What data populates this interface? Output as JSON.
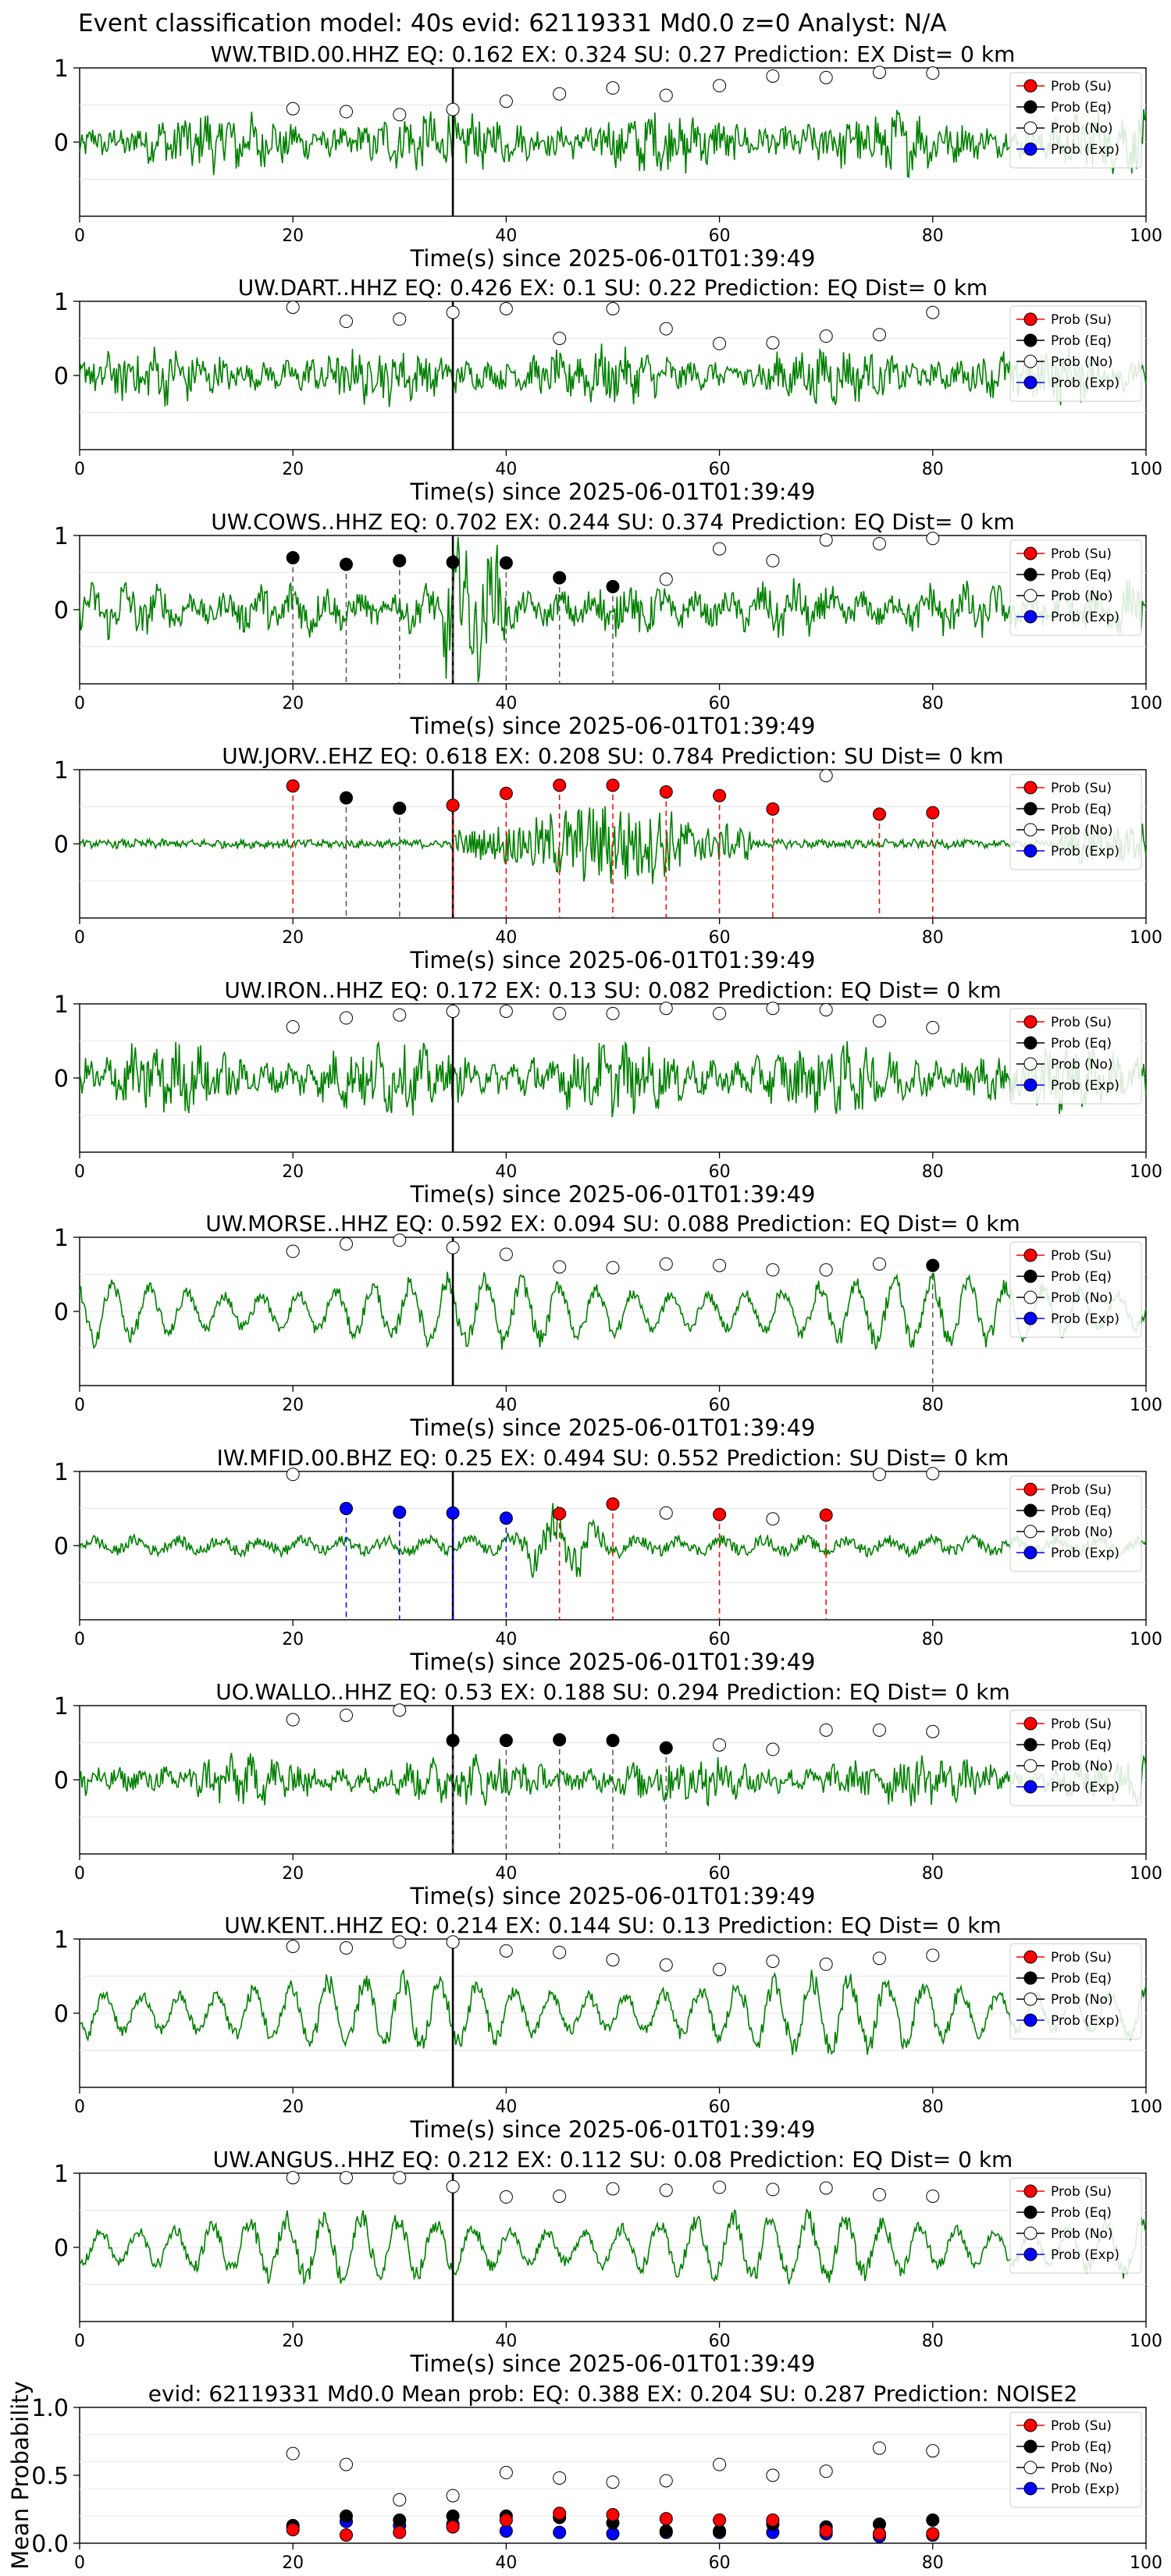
{
  "figure": {
    "suptitle": "Event classification model: 40s evid: 62119331 Md0.0 z=0 Analyst: N/A"
  },
  "legend_labels": [
    "Prob (Su)",
    "Prob (Eq)",
    "Prob (No)",
    "Prob (Exp)"
  ],
  "colors": {
    "waveform": "#008000",
    "su": "#ff0000",
    "eq": "#000000",
    "no": "#ffffff",
    "exp": "#0000ff"
  },
  "chart_data": [
    {
      "type": "line",
      "title": "WW.TBID.00.HHZ   EQ: 0.162  EX: 0.324  SU: 0.27   Prediction: EX    Dist= 0 km",
      "xlabel": "Time(s) since 2025-06-01T01:39:49",
      "xlim": [
        0,
        100
      ],
      "ylim": [
        -1,
        1
      ],
      "xticks": [
        "0",
        "20",
        "40",
        "60",
        "80",
        "100"
      ],
      "yticks": [
        "1",
        "0"
      ],
      "event_line_x": 35,
      "waveform": {
        "style": "noisy",
        "amplitude": 0.45
      },
      "points": [
        {
          "x": 20,
          "y": 0.45,
          "cls": "no"
        },
        {
          "x": 25,
          "y": 0.41,
          "cls": "no"
        },
        {
          "x": 30,
          "y": 0.37,
          "cls": "no"
        },
        {
          "x": 35,
          "y": 0.44,
          "cls": "no"
        },
        {
          "x": 40,
          "y": 0.55,
          "cls": "no"
        },
        {
          "x": 45,
          "y": 0.65,
          "cls": "no"
        },
        {
          "x": 50,
          "y": 0.73,
          "cls": "no"
        },
        {
          "x": 55,
          "y": 0.63,
          "cls": "no"
        },
        {
          "x": 60,
          "y": 0.76,
          "cls": "no"
        },
        {
          "x": 65,
          "y": 0.89,
          "cls": "no"
        },
        {
          "x": 70,
          "y": 0.87,
          "cls": "no"
        },
        {
          "x": 75,
          "y": 0.94,
          "cls": "no"
        },
        {
          "x": 80,
          "y": 0.93,
          "cls": "no"
        }
      ]
    },
    {
      "type": "line",
      "title": "UW.DART..HHZ   EQ: 0.426  EX: 0.1  SU: 0.22   Prediction: EQ    Dist= 0 km",
      "xlabel": "Time(s) since 2025-06-01T01:39:49",
      "xlim": [
        0,
        100
      ],
      "ylim": [
        -1,
        1
      ],
      "xticks": [
        "0",
        "20",
        "40",
        "60",
        "80",
        "100"
      ],
      "yticks": [
        "1",
        "0"
      ],
      "event_line_x": 35,
      "waveform": {
        "style": "noisy",
        "amplitude": 0.4
      },
      "points": [
        {
          "x": 20,
          "y": 0.92,
          "cls": "no"
        },
        {
          "x": 25,
          "y": 0.73,
          "cls": "no"
        },
        {
          "x": 30,
          "y": 0.76,
          "cls": "no"
        },
        {
          "x": 35,
          "y": 0.85,
          "cls": "no"
        },
        {
          "x": 40,
          "y": 0.9,
          "cls": "no"
        },
        {
          "x": 45,
          "y": 0.5,
          "cls": "no"
        },
        {
          "x": 50,
          "y": 0.9,
          "cls": "no"
        },
        {
          "x": 55,
          "y": 0.63,
          "cls": "no"
        },
        {
          "x": 60,
          "y": 0.43,
          "cls": "no"
        },
        {
          "x": 65,
          "y": 0.44,
          "cls": "no"
        },
        {
          "x": 70,
          "y": 0.53,
          "cls": "no"
        },
        {
          "x": 75,
          "y": 0.55,
          "cls": "no"
        },
        {
          "x": 80,
          "y": 0.85,
          "cls": "no"
        }
      ]
    },
    {
      "type": "line",
      "title": "UW.COWS..HHZ   EQ: 0.702  EX: 0.244  SU: 0.374   Prediction: EQ    Dist= 0 km",
      "xlabel": "Time(s) since 2025-06-01T01:39:49",
      "xlim": [
        0,
        100
      ],
      "ylim": [
        -1,
        1
      ],
      "xticks": [
        "0",
        "20",
        "40",
        "60",
        "80",
        "100"
      ],
      "yticks": [
        "1",
        "0"
      ],
      "event_line_x": 35,
      "waveform": {
        "style": "burst",
        "amplitude": 0.5
      },
      "points": [
        {
          "x": 20,
          "y": 0.7,
          "cls": "eq"
        },
        {
          "x": 25,
          "y": 0.61,
          "cls": "eq"
        },
        {
          "x": 30,
          "y": 0.66,
          "cls": "eq"
        },
        {
          "x": 35,
          "y": 0.64,
          "cls": "eq"
        },
        {
          "x": 40,
          "y": 0.63,
          "cls": "eq"
        },
        {
          "x": 45,
          "y": 0.43,
          "cls": "eq"
        },
        {
          "x": 50,
          "y": 0.31,
          "cls": "eq"
        },
        {
          "x": 55,
          "y": 0.41,
          "cls": "no"
        },
        {
          "x": 60,
          "y": 0.82,
          "cls": "no"
        },
        {
          "x": 65,
          "y": 0.66,
          "cls": "no"
        },
        {
          "x": 70,
          "y": 0.94,
          "cls": "no"
        },
        {
          "x": 75,
          "y": 0.89,
          "cls": "no"
        },
        {
          "x": 80,
          "y": 0.96,
          "cls": "no"
        }
      ]
    },
    {
      "type": "line",
      "title": "UW.JORV..EHZ   EQ: 0.618  EX: 0.208  SU: 0.784   Prediction: SU    Dist= 0 km",
      "xlabel": "Time(s) since 2025-06-01T01:39:49",
      "xlim": [
        0,
        100
      ],
      "ylim": [
        -1,
        1
      ],
      "xticks": [
        "0",
        "20",
        "40",
        "60",
        "80",
        "100"
      ],
      "yticks": [
        "1",
        "0"
      ],
      "event_line_x": 35,
      "waveform": {
        "style": "su",
        "amplitude": 0.55
      },
      "points": [
        {
          "x": 20,
          "y": 0.78,
          "cls": "su"
        },
        {
          "x": 25,
          "y": 0.62,
          "cls": "eq"
        },
        {
          "x": 30,
          "y": 0.48,
          "cls": "eq"
        },
        {
          "x": 35,
          "y": 0.52,
          "cls": "su"
        },
        {
          "x": 40,
          "y": 0.68,
          "cls": "su"
        },
        {
          "x": 45,
          "y": 0.79,
          "cls": "su"
        },
        {
          "x": 50,
          "y": 0.79,
          "cls": "su"
        },
        {
          "x": 55,
          "y": 0.7,
          "cls": "su"
        },
        {
          "x": 60,
          "y": 0.65,
          "cls": "su"
        },
        {
          "x": 65,
          "y": 0.47,
          "cls": "su"
        },
        {
          "x": 70,
          "y": 0.92,
          "cls": "no"
        },
        {
          "x": 75,
          "y": 0.4,
          "cls": "su"
        },
        {
          "x": 80,
          "y": 0.42,
          "cls": "su"
        }
      ]
    },
    {
      "type": "line",
      "title": "UW.IRON..HHZ   EQ: 0.172  EX: 0.13  SU: 0.082   Prediction: EQ    Dist= 0 km",
      "xlabel": "Time(s) since 2025-06-01T01:39:49",
      "xlim": [
        0,
        100
      ],
      "ylim": [
        -1,
        1
      ],
      "xticks": [
        "0",
        "20",
        "40",
        "60",
        "80",
        "100"
      ],
      "yticks": [
        "1",
        "0"
      ],
      "event_line_x": 35,
      "waveform": {
        "style": "noisy",
        "amplitude": 0.5
      },
      "points": [
        {
          "x": 20,
          "y": 0.69,
          "cls": "no"
        },
        {
          "x": 25,
          "y": 0.81,
          "cls": "no"
        },
        {
          "x": 30,
          "y": 0.85,
          "cls": "no"
        },
        {
          "x": 35,
          "y": 0.9,
          "cls": "no"
        },
        {
          "x": 40,
          "y": 0.9,
          "cls": "no"
        },
        {
          "x": 45,
          "y": 0.87,
          "cls": "no"
        },
        {
          "x": 50,
          "y": 0.87,
          "cls": "no"
        },
        {
          "x": 55,
          "y": 0.94,
          "cls": "no"
        },
        {
          "x": 60,
          "y": 0.87,
          "cls": "no"
        },
        {
          "x": 65,
          "y": 0.94,
          "cls": "no"
        },
        {
          "x": 70,
          "y": 0.92,
          "cls": "no"
        },
        {
          "x": 75,
          "y": 0.77,
          "cls": "no"
        },
        {
          "x": 80,
          "y": 0.68,
          "cls": "no"
        }
      ]
    },
    {
      "type": "line",
      "title": "UW.MORSE..HHZ   EQ: 0.592  EX: 0.094  SU: 0.088   Prediction: EQ    Dist= 0 km",
      "xlabel": "Time(s) since 2025-06-01T01:39:49",
      "xlim": [
        0,
        100
      ],
      "ylim": [
        -1,
        1
      ],
      "xticks": [
        "0",
        "20",
        "40",
        "60",
        "80",
        "100"
      ],
      "yticks": [
        "1",
        "0"
      ],
      "event_line_x": 35,
      "waveform": {
        "style": "lowfreq",
        "amplitude": 0.55
      },
      "points": [
        {
          "x": 20,
          "y": 0.81,
          "cls": "no"
        },
        {
          "x": 25,
          "y": 0.91,
          "cls": "no"
        },
        {
          "x": 30,
          "y": 0.96,
          "cls": "no"
        },
        {
          "x": 35,
          "y": 0.86,
          "cls": "no"
        },
        {
          "x": 40,
          "y": 0.77,
          "cls": "no"
        },
        {
          "x": 45,
          "y": 0.6,
          "cls": "no"
        },
        {
          "x": 50,
          "y": 0.59,
          "cls": "no"
        },
        {
          "x": 55,
          "y": 0.64,
          "cls": "no"
        },
        {
          "x": 60,
          "y": 0.62,
          "cls": "no"
        },
        {
          "x": 65,
          "y": 0.56,
          "cls": "no"
        },
        {
          "x": 70,
          "y": 0.56,
          "cls": "no"
        },
        {
          "x": 75,
          "y": 0.64,
          "cls": "no"
        },
        {
          "x": 80,
          "y": 0.62,
          "cls": "eq"
        }
      ]
    },
    {
      "type": "line",
      "title": "IW.MFID.00.BHZ   EQ: 0.25  EX: 0.494  SU: 0.552   Prediction: SU    Dist= 0 km",
      "xlabel": "Time(s) since 2025-06-01T01:39:49",
      "xlim": [
        0,
        100
      ],
      "ylim": [
        -1,
        1
      ],
      "xticks": [
        "0",
        "20",
        "40",
        "60",
        "80",
        "100"
      ],
      "yticks": [
        "1",
        "0"
      ],
      "event_line_x": 35,
      "waveform": {
        "style": "burst2",
        "amplitude": 0.3
      },
      "points": [
        {
          "x": 20,
          "y": 0.96,
          "cls": "no"
        },
        {
          "x": 25,
          "y": 0.5,
          "cls": "exp"
        },
        {
          "x": 30,
          "y": 0.45,
          "cls": "exp"
        },
        {
          "x": 35,
          "y": 0.44,
          "cls": "exp"
        },
        {
          "x": 40,
          "y": 0.37,
          "cls": "exp"
        },
        {
          "x": 45,
          "y": 0.43,
          "cls": "su"
        },
        {
          "x": 50,
          "y": 0.56,
          "cls": "su"
        },
        {
          "x": 55,
          "y": 0.44,
          "cls": "no"
        },
        {
          "x": 60,
          "y": 0.42,
          "cls": "su"
        },
        {
          "x": 65,
          "y": 0.36,
          "cls": "no"
        },
        {
          "x": 70,
          "y": 0.41,
          "cls": "su"
        },
        {
          "x": 75,
          "y": 0.96,
          "cls": "no"
        },
        {
          "x": 80,
          "y": 0.97,
          "cls": "no"
        }
      ]
    },
    {
      "type": "line",
      "title": "UO.WALLO..HHZ   EQ: 0.53  EX: 0.188  SU: 0.294   Prediction: EQ    Dist= 0 km",
      "xlabel": "Time(s) since 2025-06-01T01:39:49",
      "xlim": [
        0,
        100
      ],
      "ylim": [
        -1,
        1
      ],
      "xticks": [
        "0",
        "20",
        "40",
        "60",
        "80",
        "100"
      ],
      "yticks": [
        "1",
        "0"
      ],
      "event_line_x": 35,
      "waveform": {
        "style": "noisy",
        "amplitude": 0.35
      },
      "points": [
        {
          "x": 20,
          "y": 0.81,
          "cls": "no"
        },
        {
          "x": 25,
          "y": 0.87,
          "cls": "no"
        },
        {
          "x": 30,
          "y": 0.94,
          "cls": "no"
        },
        {
          "x": 35,
          "y": 0.53,
          "cls": "eq"
        },
        {
          "x": 40,
          "y": 0.53,
          "cls": "eq"
        },
        {
          "x": 45,
          "y": 0.54,
          "cls": "eq"
        },
        {
          "x": 50,
          "y": 0.53,
          "cls": "eq"
        },
        {
          "x": 55,
          "y": 0.43,
          "cls": "eq"
        },
        {
          "x": 60,
          "y": 0.47,
          "cls": "no"
        },
        {
          "x": 65,
          "y": 0.41,
          "cls": "no"
        },
        {
          "x": 70,
          "y": 0.67,
          "cls": "no"
        },
        {
          "x": 75,
          "y": 0.67,
          "cls": "no"
        },
        {
          "x": 80,
          "y": 0.65,
          "cls": "no"
        }
      ]
    },
    {
      "type": "line",
      "title": "UW.KENT..HHZ   EQ: 0.214  EX: 0.144  SU: 0.13   Prediction: EQ    Dist= 0 km",
      "xlabel": "Time(s) since 2025-06-01T01:39:49",
      "xlim": [
        0,
        100
      ],
      "ylim": [
        -1,
        1
      ],
      "xticks": [
        "0",
        "20",
        "40",
        "60",
        "80",
        "100"
      ],
      "yticks": [
        "1",
        "0"
      ],
      "event_line_x": 35,
      "waveform": {
        "style": "lowfreq",
        "amplitude": 0.6
      },
      "points": [
        {
          "x": 20,
          "y": 0.9,
          "cls": "no"
        },
        {
          "x": 25,
          "y": 0.88,
          "cls": "no"
        },
        {
          "x": 30,
          "y": 0.96,
          "cls": "no"
        },
        {
          "x": 35,
          "y": 0.96,
          "cls": "no"
        },
        {
          "x": 40,
          "y": 0.84,
          "cls": "no"
        },
        {
          "x": 45,
          "y": 0.82,
          "cls": "no"
        },
        {
          "x": 50,
          "y": 0.72,
          "cls": "no"
        },
        {
          "x": 55,
          "y": 0.65,
          "cls": "no"
        },
        {
          "x": 60,
          "y": 0.59,
          "cls": "no"
        },
        {
          "x": 65,
          "y": 0.7,
          "cls": "no"
        },
        {
          "x": 70,
          "y": 0.66,
          "cls": "no"
        },
        {
          "x": 75,
          "y": 0.74,
          "cls": "no"
        },
        {
          "x": 80,
          "y": 0.78,
          "cls": "no"
        }
      ]
    },
    {
      "type": "line",
      "title": "UW.ANGUS..HHZ   EQ: 0.212  EX: 0.112  SU: 0.08   Prediction: EQ    Dist= 0 km",
      "xlabel": "Time(s) since 2025-06-01T01:39:49",
      "xlim": [
        0,
        100
      ],
      "ylim": [
        -1,
        1
      ],
      "xticks": [
        "0",
        "20",
        "40",
        "60",
        "80",
        "100"
      ],
      "yticks": [
        "1",
        "0"
      ],
      "event_line_x": 35,
      "waveform": {
        "style": "lowfreq",
        "amplitude": 0.55
      },
      "points": [
        {
          "x": 20,
          "y": 0.94,
          "cls": "no"
        },
        {
          "x": 25,
          "y": 0.94,
          "cls": "no"
        },
        {
          "x": 30,
          "y": 0.94,
          "cls": "no"
        },
        {
          "x": 35,
          "y": 0.82,
          "cls": "no"
        },
        {
          "x": 40,
          "y": 0.68,
          "cls": "no"
        },
        {
          "x": 45,
          "y": 0.69,
          "cls": "no"
        },
        {
          "x": 50,
          "y": 0.79,
          "cls": "no"
        },
        {
          "x": 55,
          "y": 0.77,
          "cls": "no"
        },
        {
          "x": 60,
          "y": 0.81,
          "cls": "no"
        },
        {
          "x": 65,
          "y": 0.78,
          "cls": "no"
        },
        {
          "x": 70,
          "y": 0.8,
          "cls": "no"
        },
        {
          "x": 75,
          "y": 0.71,
          "cls": "no"
        },
        {
          "x": 80,
          "y": 0.69,
          "cls": "no"
        }
      ]
    },
    {
      "type": "scatter",
      "title": "evid: 62119331  Md0.0   Mean prob:   EQ: 0.388  EX: 0.204  SU: 0.287   Prediction: NOISE2",
      "xlabel": "",
      "ylabel": "Mean Probability",
      "xlim": [
        0,
        100
      ],
      "ylim": [
        0,
        1
      ],
      "xticks": [
        "0",
        "20",
        "40",
        "60",
        "80",
        "100"
      ],
      "yticks": [
        "0.0",
        "0.5",
        "1.0"
      ],
      "x": [
        20,
        25,
        30,
        35,
        40,
        45,
        50,
        55,
        60,
        65,
        70,
        75,
        80
      ],
      "series": [
        {
          "name": "Prob (Su)",
          "cls": "su",
          "values": [
            0.1,
            0.06,
            0.08,
            0.12,
            0.17,
            0.22,
            0.21,
            0.18,
            0.17,
            0.17,
            0.09,
            0.07,
            0.07
          ]
        },
        {
          "name": "Prob (Eq)",
          "cls": "eq",
          "values": [
            0.13,
            0.2,
            0.17,
            0.2,
            0.2,
            0.19,
            0.15,
            0.09,
            0.09,
            0.14,
            0.12,
            0.14,
            0.17
          ]
        },
        {
          "name": "Prob (No)",
          "cls": "no",
          "values": [
            0.66,
            0.58,
            0.32,
            0.35,
            0.52,
            0.48,
            0.45,
            0.46,
            0.58,
            0.5,
            0.53,
            0.7,
            0.68
          ]
        },
        {
          "name": "Prob (Exp)",
          "cls": "exp",
          "values": [
            0.12,
            0.16,
            0.13,
            0.14,
            0.09,
            0.08,
            0.07,
            0.08,
            0.08,
            0.08,
            0.07,
            0.05,
            0.06
          ]
        }
      ]
    }
  ]
}
